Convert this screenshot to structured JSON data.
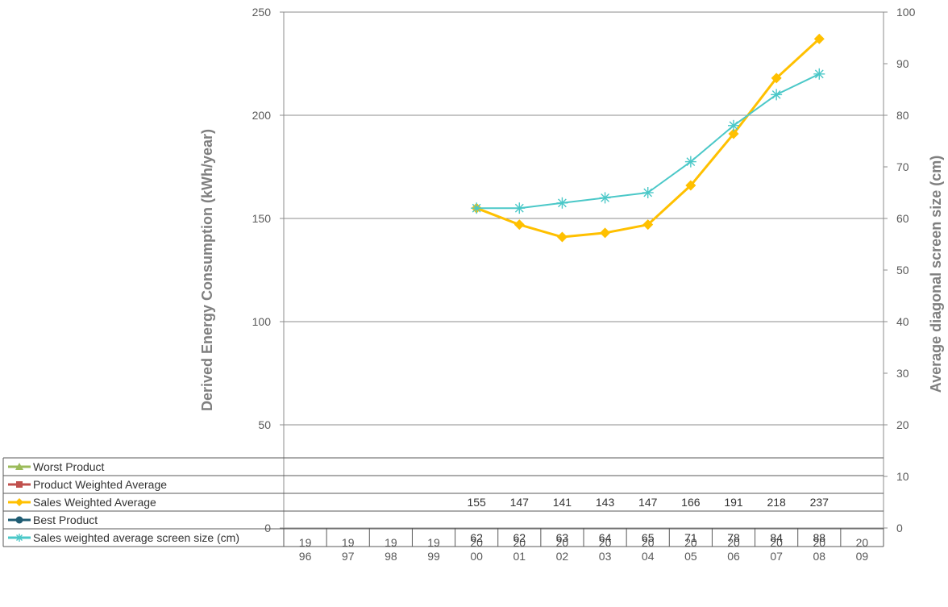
{
  "chart_data": {
    "type": "line",
    "title": "",
    "ylabel": "Derived Energy Consumption (kWh/year)",
    "y2label": "Average diagonal screen size (cm)",
    "ylim": [
      0,
      250
    ],
    "y2lim": [
      0,
      100
    ],
    "yticks": [
      "0",
      "50",
      "100",
      "150",
      "200",
      "250"
    ],
    "y2ticks": [
      "0",
      "10",
      "20",
      "30",
      "40",
      "50",
      "60",
      "70",
      "80",
      "90",
      "100"
    ],
    "categories": [
      [
        "19",
        "96"
      ],
      [
        "19",
        "97"
      ],
      [
        "19",
        "98"
      ],
      [
        "19",
        "99"
      ],
      [
        "20",
        "00"
      ],
      [
        "20",
        "01"
      ],
      [
        "20",
        "02"
      ],
      [
        "20",
        "03"
      ],
      [
        "20",
        "04"
      ],
      [
        "20",
        "05"
      ],
      [
        "20",
        "06"
      ],
      [
        "20",
        "07"
      ],
      [
        "20",
        "08"
      ],
      [
        "20",
        "09"
      ]
    ],
    "grid": true,
    "legend": "data-table",
    "series": [
      {
        "name": "Worst Product",
        "axis": "left",
        "color": "#9bbb59",
        "marker": "triangle",
        "values": [
          null,
          null,
          null,
          null,
          null,
          null,
          null,
          null,
          null,
          null,
          null,
          null,
          null,
          null
        ]
      },
      {
        "name": "Product Weighted Average",
        "axis": "left",
        "color": "#c0504d",
        "marker": "square",
        "values": [
          null,
          null,
          null,
          null,
          null,
          null,
          null,
          null,
          null,
          null,
          null,
          null,
          null,
          null
        ]
      },
      {
        "name": "Sales Weighted Average",
        "axis": "left",
        "color": "#ffc000",
        "marker": "diamond",
        "values": [
          null,
          null,
          null,
          null,
          155,
          147,
          141,
          143,
          147,
          166,
          191,
          218,
          237,
          null
        ]
      },
      {
        "name": "Best Product",
        "axis": "left",
        "color": "#1f5c73",
        "marker": "circle",
        "values": [
          null,
          null,
          null,
          null,
          null,
          null,
          null,
          null,
          null,
          null,
          null,
          null,
          null,
          null
        ]
      },
      {
        "name": "Sales weighted average screen size (cm)",
        "axis": "right",
        "color": "#4bc8c8",
        "marker": "asterisk",
        "values": [
          null,
          null,
          null,
          null,
          62,
          62,
          63,
          64,
          65,
          71,
          78,
          84,
          88,
          null
        ]
      }
    ]
  }
}
